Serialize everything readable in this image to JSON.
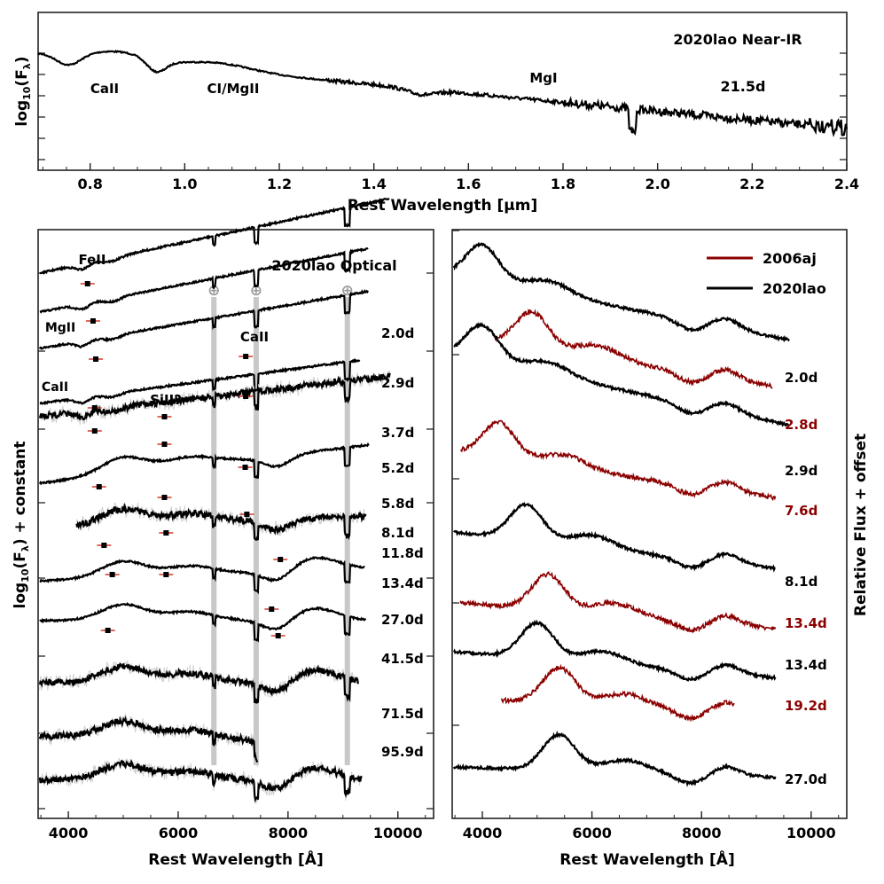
{
  "colors": {
    "black": "#000000",
    "red": "#8b0000",
    "errbar": "#d43a2a",
    "telluric": "#c8c8c8",
    "noise": "#cfcfcf"
  },
  "chart_data": [
    {
      "type": "line",
      "name": "near-ir",
      "title": "2020lao Near-IR",
      "epoch_label": "21.5d",
      "xlabel": "Rest Wavelength [μm]",
      "ylabel": "log10(Fλ)",
      "xlim": [
        0.69,
        2.4
      ],
      "xticks": [
        0.8,
        1.0,
        1.2,
        1.4,
        1.6,
        1.8,
        2.0,
        2.2,
        2.4
      ],
      "xtick_labels": [
        "0.8",
        "1.0",
        "1.2",
        "1.4",
        "1.6",
        "1.8",
        "2.0",
        "2.2",
        "2.4"
      ],
      "line_labels": [
        {
          "text": "CaII",
          "x": 0.755
        },
        {
          "text": "CI/MgII",
          "x": 0.92
        },
        {
          "text": "MgI",
          "x": 1.5
        }
      ]
    },
    {
      "type": "line",
      "name": "optical",
      "title": "2020lao Optical",
      "xlabel": "Rest Wavelength [Å]",
      "ylabel": "log10(Fλ) + constant",
      "xlim": [
        3450,
        10650
      ],
      "xticks": [
        4000,
        6000,
        8000,
        10000
      ],
      "xtick_labels": [
        "4000",
        "6000",
        "8000",
        "10000"
      ],
      "telluric_bands": [
        6650,
        7420,
        9080
      ],
      "telluric_symbol": "⊕",
      "line_labels": [
        {
          "text": "FeII",
          "x": 4230
        },
        {
          "text": "MgII",
          "x": 3850
        },
        {
          "text": "CaII",
          "x": 7420
        },
        {
          "text": "CaII",
          "x": 3700
        },
        {
          "text": "SiII?",
          "x": 5750
        }
      ],
      "epochs": [
        "2.0d",
        "2.9d",
        "3.7d",
        "5.2d",
        "5.8d",
        "8.1d",
        "11.8d",
        "13.4d",
        "27.0d",
        "41.5d",
        "71.5d",
        "95.9d"
      ]
    },
    {
      "type": "line",
      "name": "comparison",
      "xlabel": "Rest Wavelength [Å]",
      "ylabel": "Relative Flux + offset",
      "xlim": [
        3450,
        10650
      ],
      "xticks": [
        4000,
        6000,
        8000,
        10000
      ],
      "xtick_labels": [
        "4000",
        "6000",
        "8000",
        "10000"
      ],
      "legend": [
        {
          "name": "2006aj",
          "color": "#8b0000"
        },
        {
          "name": "2020lao",
          "color": "#000000"
        }
      ],
      "series": [
        {
          "sn": "2020lao",
          "epoch": "2.0d"
        },
        {
          "sn": "2006aj",
          "epoch": "2.8d"
        },
        {
          "sn": "2020lao",
          "epoch": "2.9d"
        },
        {
          "sn": "2006aj",
          "epoch": "7.6d"
        },
        {
          "sn": "2020lao",
          "epoch": "8.1d"
        },
        {
          "sn": "2006aj",
          "epoch": "13.4d"
        },
        {
          "sn": "2020lao",
          "epoch": "13.4d"
        },
        {
          "sn": "2006aj",
          "epoch": "19.2d"
        },
        {
          "sn": "2020lao",
          "epoch": "27.0d"
        }
      ]
    }
  ]
}
